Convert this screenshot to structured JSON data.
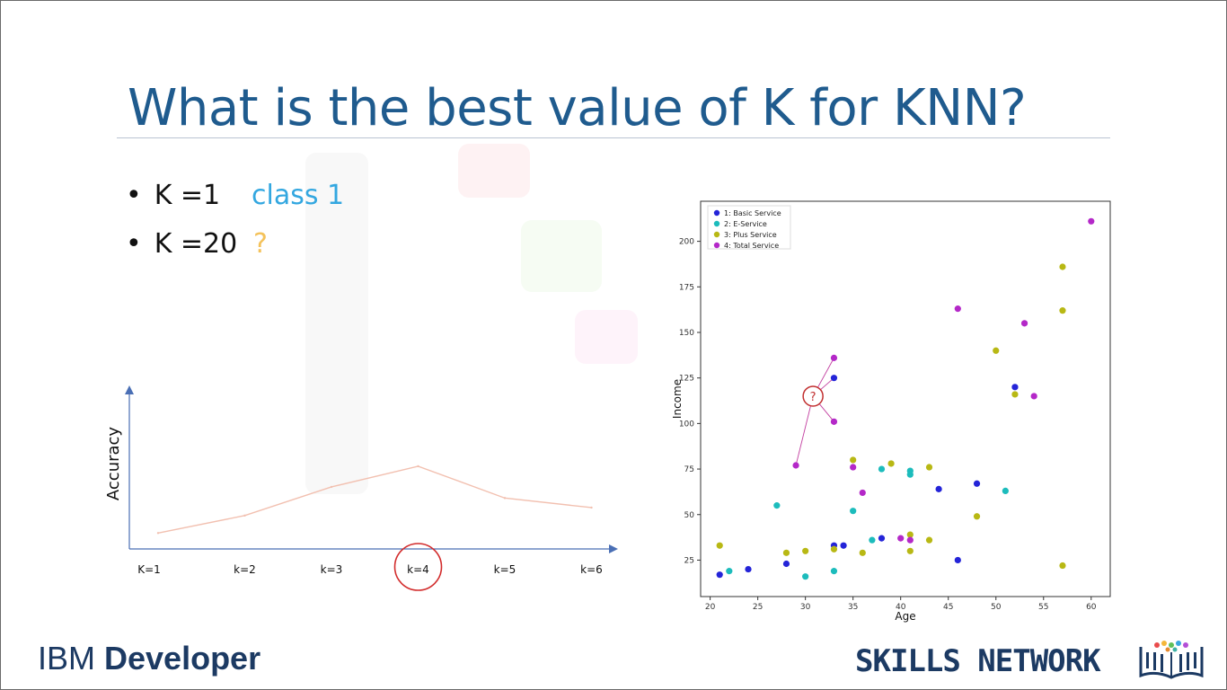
{
  "slide": {
    "title": "What is the best value of K for KNN?",
    "bullets": [
      {
        "label": "K =1",
        "answer": "class 1"
      },
      {
        "label": "K =20",
        "answer": "?"
      }
    ],
    "question_mark": "?",
    "footer_left_prefix": "IBM ",
    "footer_left_bold": "Developer",
    "footer_right": "SKILLS NETWORK"
  },
  "colors": {
    "title": "#1f5b8e",
    "class1_answer": "#33a7e0",
    "unknown_answer": "#f4c25a",
    "accuracy_line": "#f2c0b0",
    "axis": "#4a6fb5",
    "highlight": "#d22b2b"
  },
  "chart_data": [
    {
      "type": "line",
      "title": "",
      "xlabel": "",
      "ylabel": "Accuracy",
      "categories": [
        "K=1",
        "k=2",
        "k=3",
        "k=4",
        "k=5",
        "k=6"
      ],
      "values": [
        0.1,
        0.21,
        0.39,
        0.52,
        0.32,
        0.26
      ],
      "ylim": [
        0,
        1
      ],
      "highlight_category": "k=4",
      "grid": false
    },
    {
      "type": "scatter",
      "title": "",
      "xlabel": "Age",
      "ylabel": "Income",
      "xlim": [
        19,
        62
      ],
      "ylim": [
        5,
        222
      ],
      "xticks": [
        20,
        25,
        30,
        35,
        40,
        45,
        50,
        55,
        60
      ],
      "yticks": [
        25,
        50,
        75,
        100,
        125,
        150,
        175,
        200
      ],
      "legend_position": "top-left",
      "grid": false,
      "query_point": {
        "label": "?",
        "x": 30.8,
        "y": 115,
        "neighbors": [
          [
            33,
            136
          ],
          [
            33,
            125
          ],
          [
            33,
            101
          ],
          [
            29,
            77
          ]
        ]
      },
      "series": [
        {
          "name": "1: Basic Service",
          "color": "#2424d8",
          "points": [
            [
              21,
              17
            ],
            [
              24,
              20
            ],
            [
              28,
              23
            ],
            [
              33,
              33
            ],
            [
              34,
              33
            ],
            [
              38,
              37
            ],
            [
              44,
              64
            ],
            [
              46,
              25
            ],
            [
              48,
              67
            ],
            [
              52,
              120
            ],
            [
              33,
              125
            ]
          ]
        },
        {
          "name": "2: E-Service",
          "color": "#1cbcbc",
          "points": [
            [
              22,
              19
            ],
            [
              27,
              55
            ],
            [
              30,
              16
            ],
            [
              33,
              19
            ],
            [
              35,
              52
            ],
            [
              37,
              36
            ],
            [
              38,
              75
            ],
            [
              41,
              74
            ],
            [
              41,
              72
            ],
            [
              51,
              63
            ]
          ]
        },
        {
          "name": "3: Plus Service",
          "color": "#b8b814",
          "points": [
            [
              21,
              33
            ],
            [
              28,
              29
            ],
            [
              30,
              30
            ],
            [
              33,
              31
            ],
            [
              35,
              80
            ],
            [
              36,
              29
            ],
            [
              39,
              78
            ],
            [
              41,
              39
            ],
            [
              41,
              30
            ],
            [
              43,
              36
            ],
            [
              43,
              76
            ],
            [
              48,
              49
            ],
            [
              50,
              140
            ],
            [
              52,
              116
            ],
            [
              57,
              186
            ],
            [
              57,
              162
            ],
            [
              57,
              22
            ]
          ]
        },
        {
          "name": "4: Total Service",
          "color": "#b428c8",
          "points": [
            [
              29,
              77
            ],
            [
              33,
              101
            ],
            [
              33,
              136
            ],
            [
              35,
              76
            ],
            [
              36,
              62
            ],
            [
              40,
              37
            ],
            [
              41,
              36
            ],
            [
              46,
              163
            ],
            [
              53,
              155
            ],
            [
              54,
              115
            ],
            [
              60,
              211
            ]
          ]
        }
      ]
    }
  ]
}
